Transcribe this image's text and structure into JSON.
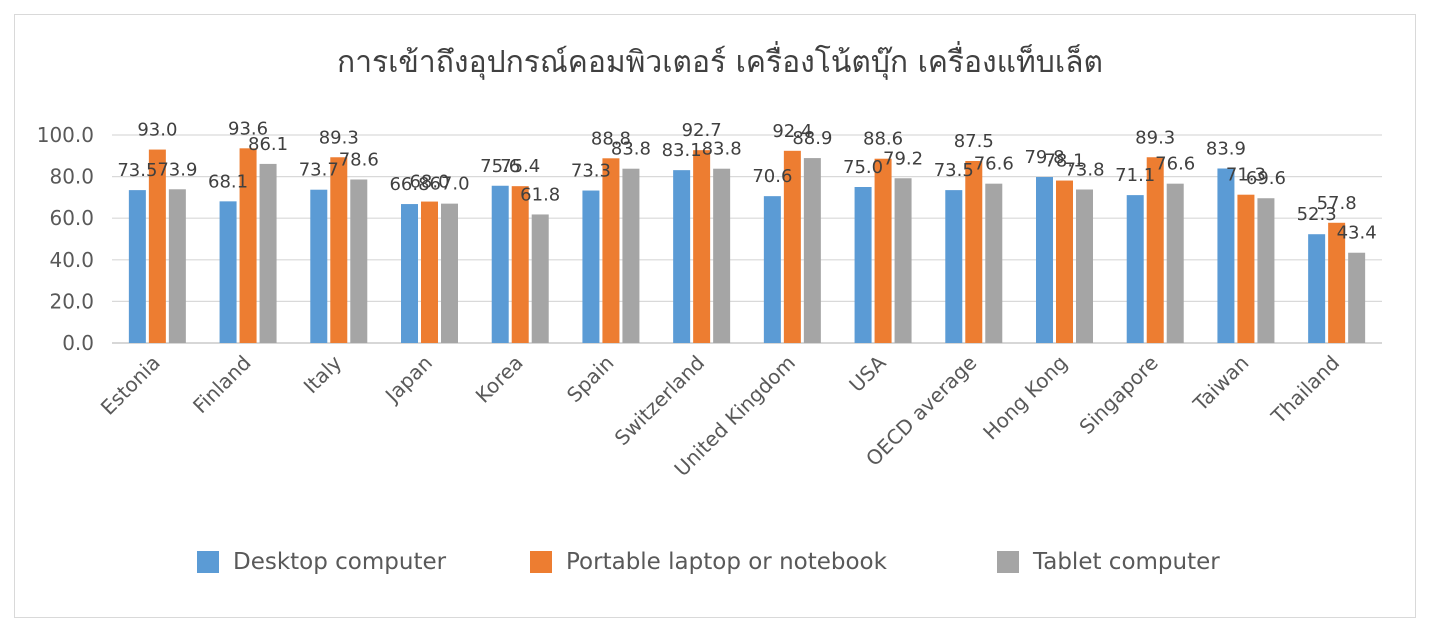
{
  "chart_data": {
    "type": "bar",
    "title": "การเข้าถึงอุปกรณ์คอมพิวเตอร์ เครื่องโน้ตบุ๊ก เครื่องแท็บเล็ต",
    "xlabel": "",
    "ylabel": "",
    "ylim": [
      0,
      100
    ],
    "yticks": [
      "0.0",
      "20.0",
      "40.0",
      "60.0",
      "80.0",
      "100.0"
    ],
    "grid": true,
    "legend_position": "bottom",
    "categories": [
      "Estonia",
      "Finland",
      "Italy",
      "Japan",
      "Korea",
      "Spain",
      "Switzerland",
      "United Kingdom",
      "USA",
      "OECD average",
      "Hong Kong",
      "Singapore",
      "Taiwan",
      "Thailand"
    ],
    "series": [
      {
        "name": "Desktop computer",
        "color": "#5b9bd5",
        "values": [
          73.5,
          68.1,
          73.7,
          66.8,
          75.6,
          73.3,
          83.1,
          70.6,
          75.0,
          73.5,
          79.8,
          71.1,
          83.9,
          52.3
        ]
      },
      {
        "name": "Portable laptop or notebook",
        "color": "#ed7d31",
        "values": [
          93.0,
          93.6,
          89.3,
          68.0,
          75.4,
          88.8,
          92.7,
          92.4,
          88.6,
          87.5,
          78.1,
          89.3,
          71.3,
          57.8
        ]
      },
      {
        "name": "Tablet computer",
        "color": "#a5a5a5",
        "values": [
          73.9,
          86.1,
          78.6,
          67.0,
          61.8,
          83.8,
          83.8,
          88.9,
          79.2,
          76.6,
          73.8,
          76.6,
          69.6,
          43.4
        ]
      }
    ]
  }
}
